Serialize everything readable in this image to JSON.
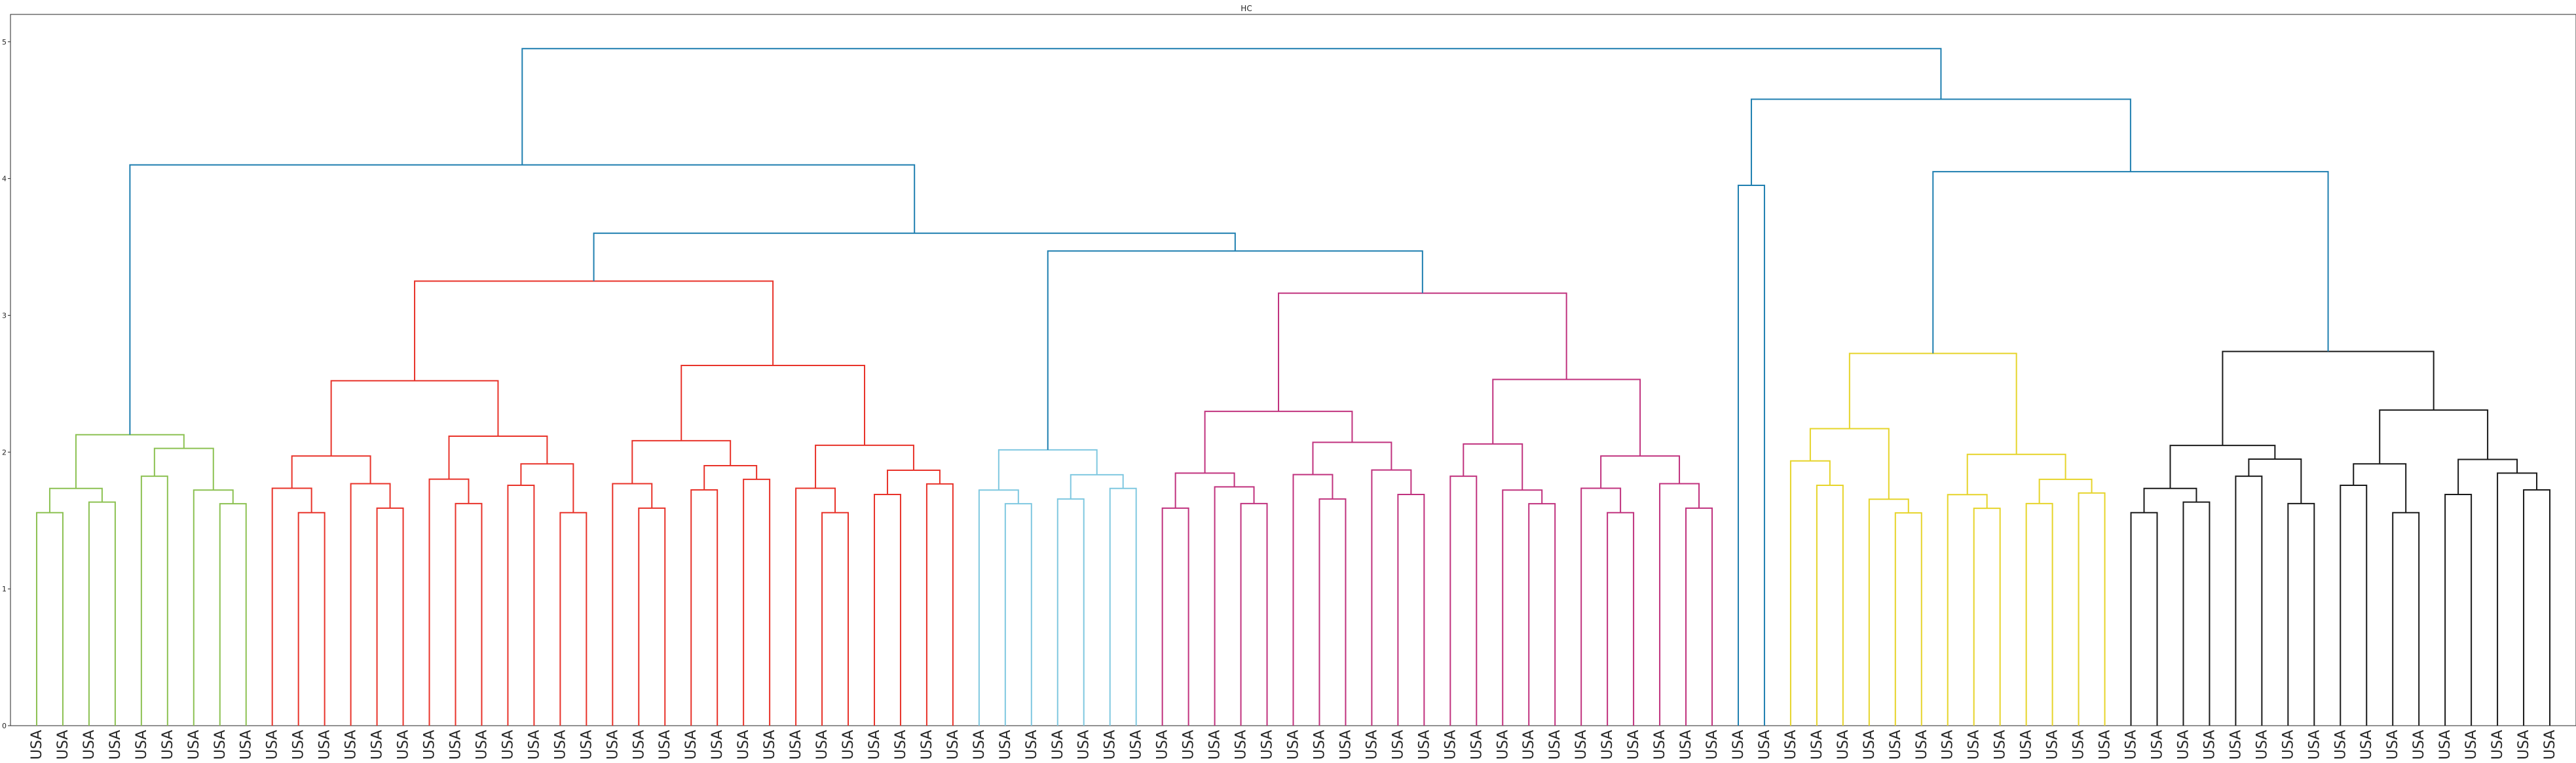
{
  "chart_data": {
    "type": "dendrogram",
    "title": "HC",
    "xlabel": "",
    "ylabel": "",
    "ylim": [
      0,
      5.2
    ],
    "yticks": [
      0,
      1,
      2,
      3,
      4,
      5
    ],
    "grid": false,
    "leaf_label": "USA",
    "leaf_count": 97,
    "cluster_colors": {
      "green": "#8cc152",
      "red": "#e8332a",
      "cyan": "#7fc8e0",
      "magenta": "#c0327e",
      "blue": "#1f7fb0",
      "yellow": "#e6d42a",
      "black": "#1a1a1a"
    },
    "links": [
      {
        "a": 0,
        "b": 1,
        "h": 2.05,
        "c": "green"
      },
      {
        "a": 2,
        "b": 3,
        "h": 1.85,
        "c": "green"
      },
      {
        "a": 4,
        "b": 5,
        "h": 1.75,
        "c": "green"
      },
      {
        "a": 6,
        "b": 7,
        "h": 2.35,
        "c": "green"
      },
      {
        "a": 8,
        "b": 9,
        "h": 2.05,
        "c": "red"
      },
      {
        "a": 10,
        "b": 11,
        "h": 1.97,
        "c": "red"
      },
      {
        "a": 12,
        "b": 13,
        "h": 1.72,
        "c": "red"
      },
      {
        "a": 14,
        "b": 15,
        "h": 1.82,
        "c": "red"
      },
      {
        "a": 16,
        "b": 17,
        "h": 2.28,
        "c": "red"
      },
      {
        "a": 18,
        "b": 19,
        "h": 1.98,
        "c": "red"
      },
      {
        "a": 20,
        "b": 21,
        "h": 1.8,
        "c": "red"
      },
      {
        "a": 22,
        "b": 23,
        "h": 1.58,
        "c": "red"
      },
      {
        "a": 24,
        "b": 25,
        "h": 1.85,
        "c": "red"
      },
      {
        "a": 26,
        "b": 27,
        "h": 1.57,
        "c": "red"
      },
      {
        "a": 28,
        "b": 29,
        "h": 2.42,
        "c": "cyan"
      },
      {
        "a": 30,
        "b": 31,
        "h": 2.32,
        "c": "cyan"
      },
      {
        "a": 32,
        "b": 33,
        "h": 2.85,
        "c": "magenta"
      },
      {
        "a": 34,
        "b": 35,
        "h": 1.68,
        "c": "magenta"
      },
      {
        "a": 36,
        "b": 37,
        "h": 2.35,
        "c": "magenta"
      },
      {
        "a": 38,
        "b": 39,
        "h": 2.1,
        "c": "magenta"
      },
      {
        "a": 40,
        "b": 41,
        "h": 1.65,
        "c": "magenta"
      },
      {
        "a": 42,
        "b": 43,
        "h": 3.92,
        "c": "blue"
      },
      {
        "a": 44,
        "b": 45,
        "h": 2.48,
        "c": "yellow"
      },
      {
        "a": 46,
        "b": 47,
        "h": 2.7,
        "c": "yellow"
      },
      {
        "a": 48,
        "b": 49,
        "h": 2.3,
        "c": "yellow"
      },
      {
        "a": 50,
        "b": 51,
        "h": 1.92,
        "c": "yellow"
      },
      {
        "a": 52,
        "b": 53,
        "h": 2.62,
        "c": "black"
      },
      {
        "a": 54,
        "b": 55,
        "h": 2.62,
        "c": "black"
      },
      {
        "a": 56,
        "b": 57,
        "h": 2.32,
        "c": "black"
      },
      {
        "a": 58,
        "b": 59,
        "h": 1.6,
        "c": "black"
      },
      {
        "a": 60,
        "b": 61,
        "h": 2.02,
        "c": "black"
      },
      {
        "a": 62,
        "b": 63,
        "h": 2.24,
        "c": "black"
      },
      {
        "a": 1,
        "b": 3,
        "h": 1.48,
        "c": "green"
      },
      {
        "a": 4,
        "b": 5,
        "h": 1.9,
        "c": "red"
      },
      {
        "a": 6,
        "b": 7,
        "h": 2.1,
        "c": "red"
      },
      {
        "a": 8,
        "b": 9,
        "h": 1.9,
        "c": "red"
      },
      {
        "a": 10,
        "b": 11,
        "h": 1.68,
        "c": "magenta"
      },
      {
        "a": 12,
        "b": 13,
        "h": 1.7,
        "c": "magenta"
      },
      {
        "a": 14,
        "b": 15,
        "h": 2.15,
        "c": "magenta"
      },
      {
        "a": 16,
        "b": 17,
        "h": 2.25,
        "c": "magenta"
      },
      {
        "a": 18,
        "b": 19,
        "h": 2.15,
        "c": "magenta"
      },
      {
        "a": 20,
        "b": 21,
        "h": 1.88,
        "c": "magenta"
      },
      {
        "a": 22,
        "b": 23,
        "h": 2.0,
        "c": "magenta"
      },
      {
        "a": 24,
        "b": 25,
        "h": 2.52,
        "c": "yellow"
      },
      {
        "a": 26,
        "b": 27,
        "h": 2.02,
        "c": "yellow"
      },
      {
        "a": 28,
        "b": 29,
        "h": 1.74,
        "c": "yellow"
      },
      {
        "a": 30,
        "b": 31,
        "h": 2.2,
        "c": "black"
      },
      {
        "a": 32,
        "b": 33,
        "h": 1.77,
        "c": "black"
      },
      {
        "a": 34,
        "b": 35,
        "h": 2.2,
        "c": "cyan"
      },
      {
        "a": 36,
        "b": 37,
        "h": 1.8,
        "c": "cyan"
      },
      {
        "a": 38,
        "b": 39,
        "h": 2.08,
        "c": "red"
      }
    ]
  }
}
